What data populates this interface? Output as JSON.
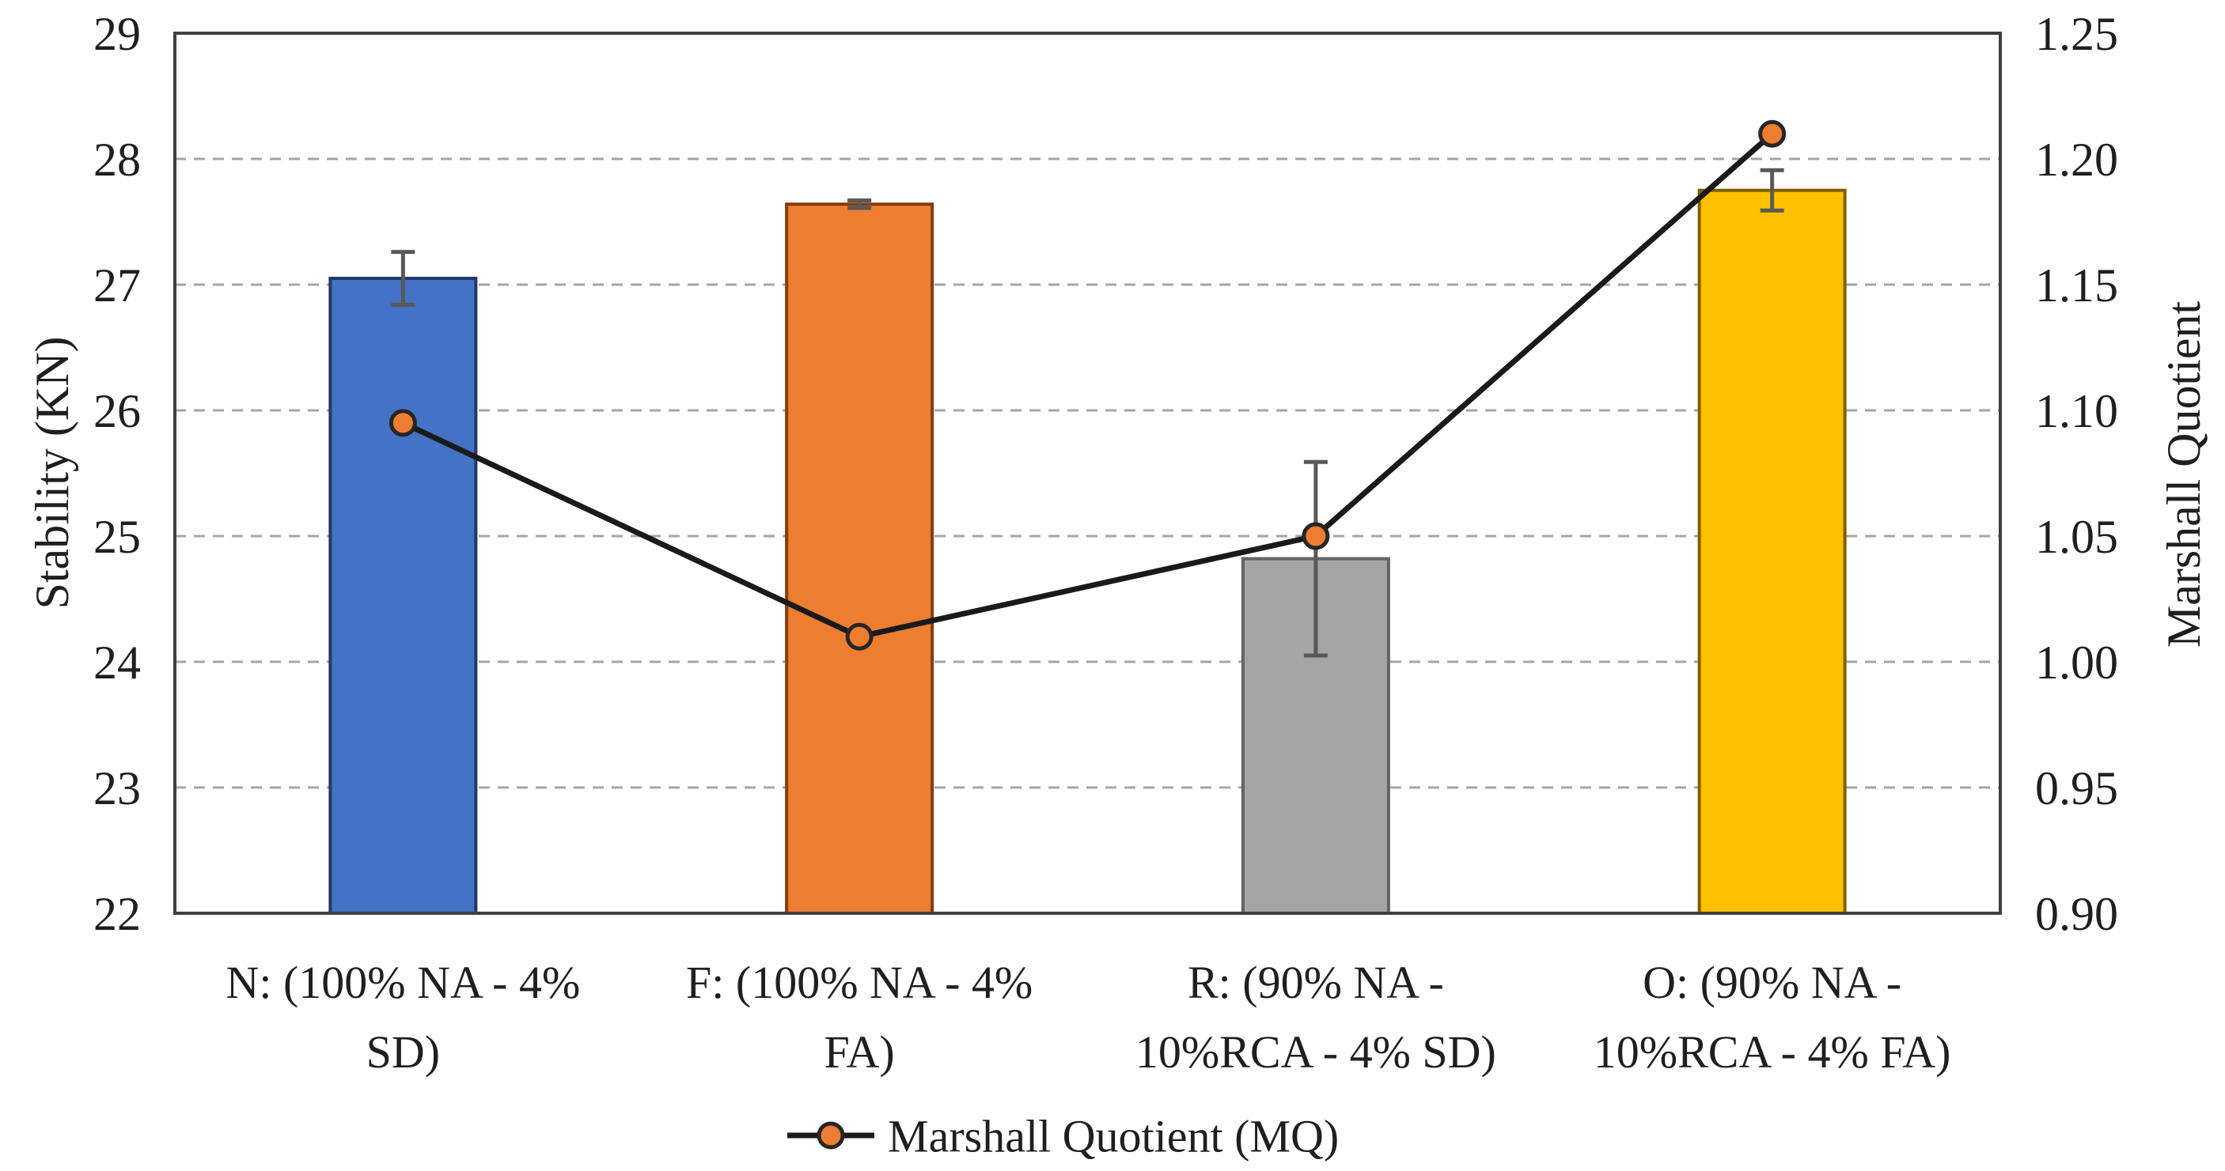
{
  "chart_data": {
    "type": "combo-bar-line",
    "title": "",
    "categories": [
      {
        "id": "N",
        "label": "N: (100% NA - 4% SD)",
        "lines": [
          "N: (100% NA - 4%",
          "SD)"
        ]
      },
      {
        "id": "F",
        "label": "F: (100% NA - 4% FA)",
        "lines": [
          "F: (100% NA - 4%",
          "FA)"
        ]
      },
      {
        "id": "R",
        "label": "R: (90% NA - 10%RCA - 4% SD)",
        "lines": [
          "R: (90% NA -",
          "10%RCA - 4% SD)"
        ]
      },
      {
        "id": "O",
        "label": "O: (90% NA - 10%RCA - 4% FA)",
        "lines": [
          "O: (90% NA -",
          "10%RCA - 4% FA)"
        ]
      }
    ],
    "bar_series": {
      "name": "Stability",
      "axis": "left",
      "values": [
        27.05,
        27.64,
        24.82,
        27.75
      ],
      "error_plus_minus": [
        0.21,
        0.03,
        0.77,
        0.16
      ],
      "fill_colors": [
        "#4472C4",
        "#ED7D31",
        "#A5A5A5",
        "#FFC000"
      ],
      "border_colors": [
        "#203864",
        "#843C0C",
        "#636363",
        "#7F6000"
      ]
    },
    "line_series": {
      "name": "Marshall Quotient (MQ)",
      "axis": "right",
      "values": [
        1.095,
        1.01,
        1.05,
        1.21
      ],
      "line_color": "#1A1A1A",
      "marker_fill": "#ED7D31",
      "marker_stroke": "#262626"
    },
    "left_axis": {
      "label": "Stability (KN)",
      "min": 22,
      "max": 29,
      "tick_step": 1,
      "ticks": [
        "22",
        "23",
        "24",
        "25",
        "26",
        "27",
        "28",
        "29"
      ]
    },
    "right_axis": {
      "label": "Marshall Quotient",
      "min": 0.9,
      "max": 1.25,
      "tick_step": 0.05,
      "ticks": [
        "0.90",
        "0.95",
        "1.00",
        "1.05",
        "1.10",
        "1.15",
        "1.20",
        "1.25"
      ]
    },
    "legend": {
      "label": "Marshall Quotient (MQ)",
      "position": "bottom"
    },
    "grid": {
      "show": true,
      "color": "#A6A6A6",
      "style": "dashed"
    },
    "plot_border_color": "#3F3F3F",
    "error_bar_color": "#595959"
  }
}
